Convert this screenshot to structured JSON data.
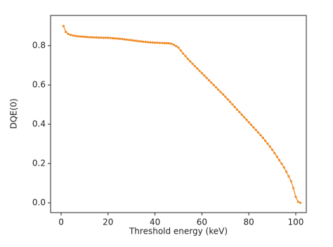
{
  "chart_data": {
    "type": "line",
    "x_label": "Threshold energy (keV)",
    "y_label": "DQE(0)",
    "color": "#f08a24",
    "x": [
      1,
      2,
      3,
      4,
      5,
      6,
      7,
      8,
      9,
      10,
      11,
      12,
      13,
      14,
      15,
      16,
      17,
      18,
      19,
      20,
      21,
      22,
      23,
      24,
      25,
      26,
      27,
      28,
      29,
      30,
      31,
      32,
      33,
      34,
      35,
      36,
      37,
      38,
      39,
      40,
      41,
      42,
      43,
      44,
      45,
      46,
      47,
      48,
      49,
      50,
      51,
      52,
      53,
      54,
      55,
      56,
      57,
      58,
      59,
      60,
      61,
      62,
      63,
      64,
      65,
      66,
      67,
      68,
      69,
      70,
      71,
      72,
      73,
      74,
      75,
      76,
      77,
      78,
      79,
      80,
      81,
      82,
      83,
      84,
      85,
      86,
      87,
      88,
      89,
      90,
      91,
      92,
      93,
      94,
      95,
      96,
      97,
      98,
      99,
      100,
      101,
      102
    ],
    "values": [
      0.9,
      0.87,
      0.86,
      0.855,
      0.852,
      0.85,
      0.848,
      0.847,
      0.846,
      0.845,
      0.844,
      0.843,
      0.843,
      0.842,
      0.842,
      0.841,
      0.841,
      0.84,
      0.84,
      0.84,
      0.839,
      0.838,
      0.837,
      0.836,
      0.835,
      0.834,
      0.832,
      0.831,
      0.829,
      0.828,
      0.826,
      0.825,
      0.823,
      0.822,
      0.82,
      0.819,
      0.818,
      0.817,
      0.816,
      0.815,
      0.815,
      0.814,
      0.814,
      0.813,
      0.813,
      0.812,
      0.81,
      0.805,
      0.798,
      0.79,
      0.776,
      0.76,
      0.747,
      0.733,
      0.72,
      0.708,
      0.696,
      0.684,
      0.672,
      0.66,
      0.648,
      0.636,
      0.624,
      0.612,
      0.6,
      0.588,
      0.576,
      0.564,
      0.552,
      0.54,
      0.527,
      0.514,
      0.501,
      0.488,
      0.475,
      0.462,
      0.449,
      0.436,
      0.423,
      0.41,
      0.397,
      0.384,
      0.371,
      0.358,
      0.345,
      0.331,
      0.316,
      0.301,
      0.286,
      0.27,
      0.253,
      0.235,
      0.217,
      0.199,
      0.18,
      0.158,
      0.135,
      0.11,
      0.075,
      0.03,
      0.005,
      0.0
    ],
    "xlim": [
      -4.5,
      104.5
    ],
    "ylim": [
      -0.05,
      0.954
    ],
    "xticks": [
      0,
      20,
      40,
      60,
      80,
      100
    ],
    "yticks": [
      {
        "value": 0,
        "label": "0.0"
      },
      0.2,
      0.4,
      0.6,
      0.8
    ]
  }
}
